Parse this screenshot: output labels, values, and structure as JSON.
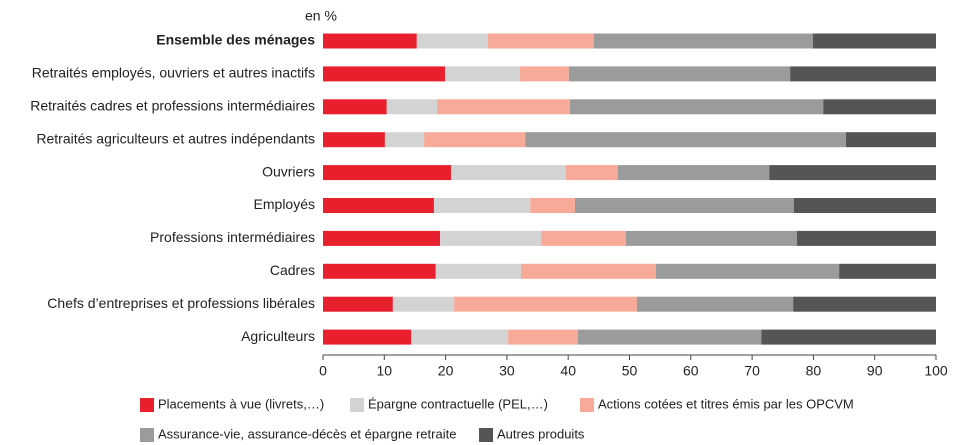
{
  "chart_data": {
    "type": "stacked_barh",
    "unit_label": "en %",
    "categories": [
      "Ensemble des ménages",
      "Retraités employés, ouvriers et autres inactifs",
      "Retraités cadres et professions intermédiaires",
      "Retraités agriculteurs et autres indépendants",
      "Ouvriers",
      "Employés",
      "Professions intermédiaires",
      "Cadres",
      "Chefs d’entreprises et professions libérales",
      "Agriculteurs"
    ],
    "series": [
      {
        "name": "Placements à vue (livrets,…)",
        "color": "#e8202e",
        "values": [
          15.3,
          19.9,
          10.4,
          10.1,
          20.9,
          18.1,
          19.1,
          18.4,
          11.4,
          14.4
        ]
      },
      {
        "name": "Épargne contractuelle (PEL,…)",
        "color": "#d3d3d3",
        "values": [
          11.6,
          12.2,
          8.2,
          6.4,
          18.7,
          15.7,
          16.5,
          13.9,
          10.0,
          15.8
        ]
      },
      {
        "name": "Actions cotées et titres émis par les OPCVM",
        "color": "#f7aa98",
        "values": [
          17.3,
          8.0,
          21.7,
          16.5,
          8.5,
          7.3,
          13.8,
          22.0,
          29.8,
          11.4
        ]
      },
      {
        "name": "Assurance-vie, assurance-décès et épargne retraite",
        "color": "#9b9b9b",
        "values": [
          35.7,
          36.1,
          41.3,
          52.3,
          24.7,
          35.7,
          27.9,
          29.9,
          25.5,
          29.9
        ]
      },
      {
        "name": "Autres produits",
        "color": "#555555",
        "values": [
          20.1,
          23.8,
          18.4,
          14.7,
          27.2,
          23.2,
          22.7,
          15.8,
          23.3,
          28.5
        ]
      }
    ],
    "xlim": [
      0,
      100
    ],
    "xticks": [
      0,
      10,
      20,
      30,
      40,
      50,
      60,
      70,
      80,
      90,
      100
    ]
  }
}
